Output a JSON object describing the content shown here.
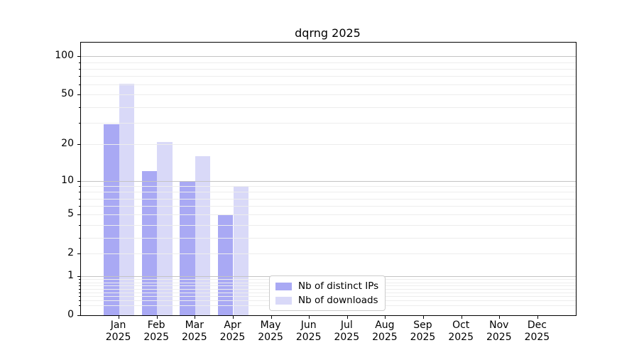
{
  "chart_data": {
    "type": "bar",
    "title": "dqrng 2025",
    "year_label": "2025",
    "categories": [
      "Jan",
      "Feb",
      "Mar",
      "Apr",
      "May",
      "Jun",
      "Jul",
      "Aug",
      "Sep",
      "Oct",
      "Nov",
      "Dec"
    ],
    "series": [
      {
        "name": "Nb of distinct IPs",
        "color": "#a9a9f4",
        "values": [
          29,
          12,
          10,
          5,
          0,
          0,
          0,
          0,
          0,
          0,
          0,
          0
        ]
      },
      {
        "name": "Nb of downloads",
        "color": "#d9d9f8",
        "values": [
          61,
          21,
          16,
          9,
          0,
          0,
          0,
          0,
          0,
          0,
          0,
          0
        ]
      }
    ],
    "yscale": "log1p",
    "ylim": [
      0,
      128
    ],
    "yticks": [
      100,
      50,
      20,
      10,
      5,
      2,
      1,
      0
    ],
    "grid": "horizontal",
    "grid_major_values": [
      1,
      10,
      100
    ],
    "grid_minor_values": [
      0.2,
      0.3,
      0.4,
      0.5,
      0.6,
      0.7,
      0.8,
      0.9,
      2,
      3,
      4,
      5,
      6,
      7,
      8,
      9,
      20,
      30,
      40,
      50,
      60,
      70,
      80,
      90
    ],
    "legend_position": "lower center",
    "colors": {
      "axis": "#000000",
      "grid_major": "#c4c4c4",
      "grid_minor": "#ededed",
      "legend_border": "#cccccc",
      "background": "#ffffff"
    }
  }
}
